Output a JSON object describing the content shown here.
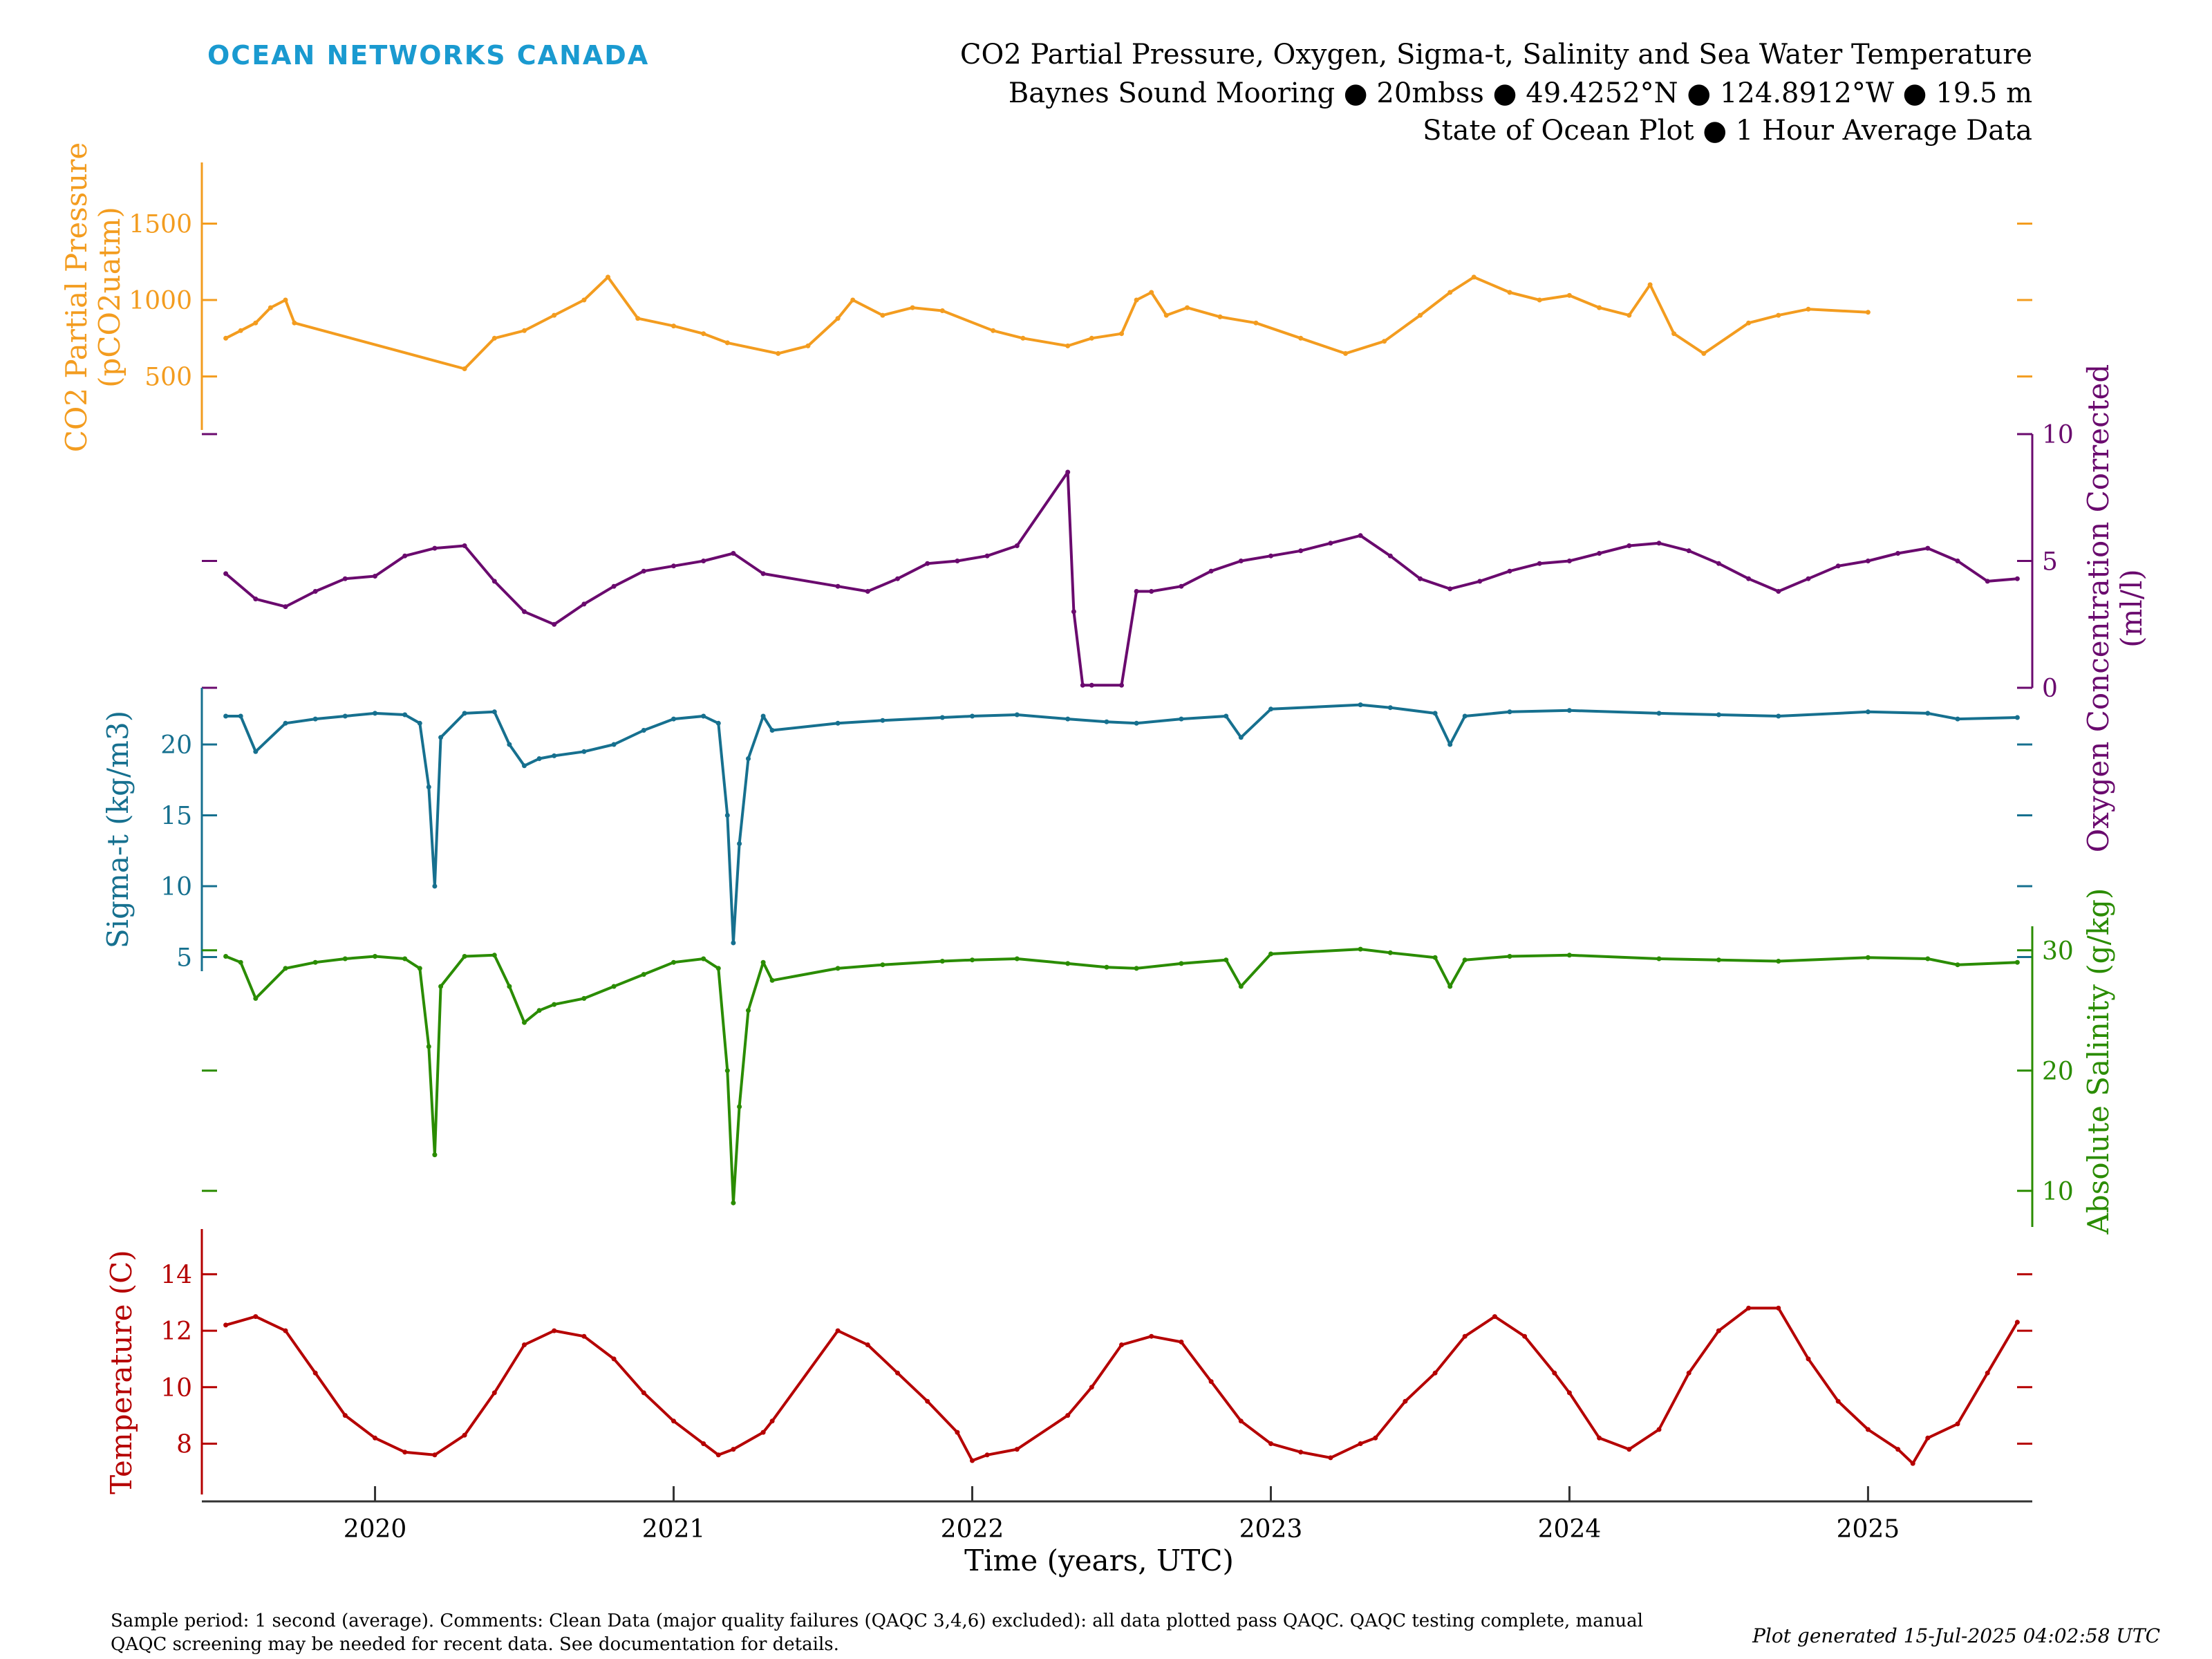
{
  "header": {
    "logo_text": "OCEAN NETWORKS CANADA",
    "title_line1": "CO2 Partial Pressure, Oxygen, Sigma-t, Salinity and Sea Water Temperature",
    "title_line2": "Baynes Sound Mooring ● 20mbss ● 49.4252°N ● 124.8912°W ● 19.5 m",
    "title_line3": "State of Ocean Plot ● 1 Hour Average Data"
  },
  "footer": {
    "comment_line1": "Sample period: 1 second (average). Comments: Clean Data (major quality failures (QAQC 3,4,6) excluded): all data plotted pass QAQC. QAQC testing complete, manual",
    "comment_line2": "QAQC screening may be needed for recent data. See documentation for details.",
    "generated": "Plot generated 15-Jul-2025 04:02:58 UTC"
  },
  "colors": {
    "co2": "#f39c1f",
    "oxygen": "#6a0a6e",
    "sigma": "#16708f",
    "salinity": "#2a8c00",
    "temperature": "#b50000",
    "logo": "#1a9ad0",
    "axis": "#333333"
  },
  "chart_data": {
    "type": "line",
    "xlabel": "Time (years, UTC)",
    "xlim": [
      2019.42,
      2025.55
    ],
    "x_ticks": [
      "2020",
      "2021",
      "2022",
      "2023",
      "2024",
      "2025"
    ],
    "panels": [
      {
        "id": "co2",
        "ylabel_line1": "CO2 Partial Pressure",
        "ylabel_line2": "(pCO2uatm)",
        "side": "left",
        "ylim": [
          150,
          1900
        ],
        "ticks": [
          500,
          1000,
          1500
        ],
        "x": [
          2019.5,
          2019.55,
          2019.6,
          2019.65,
          2019.7,
          2019.73,
          2020.3,
          2020.4,
          2020.5,
          2020.6,
          2020.7,
          2020.78,
          2020.88,
          2021.0,
          2021.1,
          2021.18,
          2021.35,
          2021.45,
          2021.55,
          2021.6,
          2021.7,
          2021.8,
          2021.9,
          2022.07,
          2022.17,
          2022.32,
          2022.4,
          2022.5,
          2022.55,
          2022.6,
          2022.65,
          2022.72,
          2022.83,
          2022.95,
          2023.1,
          2023.25,
          2023.38,
          2023.5,
          2023.6,
          2023.68,
          2023.8,
          2023.9,
          2024.0,
          2024.1,
          2024.2,
          2024.27,
          2024.35,
          2024.45,
          2024.6,
          2024.7,
          2024.8,
          2025.0
        ],
        "y": [
          750,
          800,
          850,
          950,
          1000,
          850,
          550,
          750,
          800,
          900,
          1000,
          1150,
          880,
          830,
          780,
          720,
          650,
          700,
          880,
          1000,
          900,
          950,
          930,
          800,
          750,
          700,
          750,
          780,
          1000,
          1050,
          900,
          950,
          890,
          850,
          750,
          650,
          730,
          900,
          1050,
          1150,
          1050,
          1000,
          1030,
          950,
          900,
          1100,
          780,
          650,
          850,
          900,
          940,
          920
        ]
      },
      {
        "id": "oxygen",
        "ylabel_line1": "Oxygen Concentration Corrected",
        "ylabel_line2": "(ml/l)",
        "side": "right",
        "ylim": [
          0,
          10
        ],
        "ticks": [
          0,
          5,
          10
        ],
        "x": [
          2019.5,
          2019.6,
          2019.7,
          2019.8,
          2019.9,
          2020.0,
          2020.1,
          2020.2,
          2020.3,
          2020.4,
          2020.5,
          2020.6,
          2020.7,
          2020.8,
          2020.9,
          2021.0,
          2021.1,
          2021.2,
          2021.3,
          2021.55,
          2021.65,
          2021.75,
          2021.85,
          2021.95,
          2022.05,
          2022.15,
          2022.32,
          2022.34,
          2022.37,
          2022.4,
          2022.5,
          2022.55,
          2022.6,
          2022.7,
          2022.8,
          2022.9,
          2023.0,
          2023.1,
          2023.2,
          2023.3,
          2023.4,
          2023.5,
          2023.6,
          2023.7,
          2023.8,
          2023.9,
          2024.0,
          2024.1,
          2024.2,
          2024.3,
          2024.4,
          2024.5,
          2024.6,
          2024.7,
          2024.8,
          2024.9,
          2025.0,
          2025.1,
          2025.2,
          2025.3,
          2025.4,
          2025.5
        ],
        "y": [
          4.5,
          3.5,
          3.2,
          3.8,
          4.3,
          4.4,
          5.2,
          5.5,
          5.6,
          4.2,
          3.0,
          2.5,
          3.3,
          4.0,
          4.6,
          4.8,
          5.0,
          5.3,
          4.5,
          4.0,
          3.8,
          4.3,
          4.9,
          5.0,
          5.2,
          5.6,
          8.5,
          3.0,
          0.1,
          0.1,
          0.1,
          3.8,
          3.8,
          4.0,
          4.6,
          5.0,
          5.2,
          5.4,
          5.7,
          6.0,
          5.2,
          4.3,
          3.9,
          4.2,
          4.6,
          4.9,
          5.0,
          5.3,
          5.6,
          5.7,
          5.4,
          4.9,
          4.3,
          3.8,
          4.3,
          4.8,
          5.0,
          5.3,
          5.5,
          5.0,
          4.2,
          4.3
        ]
      },
      {
        "id": "sigma",
        "ylabel_line1": "Sigma-t (kg/m3)",
        "side": "left",
        "ylim": [
          4,
          24
        ],
        "ticks": [
          5,
          10,
          15,
          20
        ],
        "x": [
          2019.5,
          2019.55,
          2019.6,
          2019.7,
          2019.8,
          2019.9,
          2020.0,
          2020.1,
          2020.15,
          2020.18,
          2020.2,
          2020.22,
          2020.3,
          2020.4,
          2020.45,
          2020.5,
          2020.55,
          2020.6,
          2020.7,
          2020.8,
          2020.9,
          2021.0,
          2021.1,
          2021.15,
          2021.18,
          2021.2,
          2021.22,
          2021.25,
          2021.3,
          2021.33,
          2021.55,
          2021.7,
          2021.9,
          2022.0,
          2022.15,
          2022.32,
          2022.45,
          2022.55,
          2022.7,
          2022.85,
          2022.9,
          2023.0,
          2023.3,
          2023.4,
          2023.55,
          2023.6,
          2023.65,
          2023.8,
          2024.0,
          2024.3,
          2024.5,
          2024.7,
          2025.0,
          2025.2,
          2025.3,
          2025.5
        ],
        "y": [
          22.0,
          22.0,
          19.5,
          21.5,
          21.8,
          22.0,
          22.2,
          22.1,
          21.5,
          17.0,
          10.0,
          20.5,
          22.2,
          22.3,
          20.0,
          18.5,
          19.0,
          19.2,
          19.5,
          20.0,
          21.0,
          21.8,
          22.0,
          21.5,
          15.0,
          6.0,
          13.0,
          19.0,
          22.0,
          21.0,
          21.5,
          21.7,
          21.9,
          22.0,
          22.1,
          21.8,
          21.6,
          21.5,
          21.8,
          22.0,
          20.5,
          22.5,
          22.8,
          22.6,
          22.2,
          20.0,
          22.0,
          22.3,
          22.4,
          22.2,
          22.1,
          22.0,
          22.3,
          22.2,
          21.8,
          21.9
        ]
      },
      {
        "id": "salinity",
        "ylabel_line1": "Absolute Salinity (g/kg)",
        "side": "right",
        "ylim": [
          7,
          32
        ],
        "ticks": [
          10,
          20,
          30
        ],
        "x": [
          2019.5,
          2019.55,
          2019.6,
          2019.7,
          2019.8,
          2019.9,
          2020.0,
          2020.1,
          2020.15,
          2020.18,
          2020.2,
          2020.22,
          2020.3,
          2020.4,
          2020.45,
          2020.5,
          2020.55,
          2020.6,
          2020.7,
          2020.8,
          2020.9,
          2021.0,
          2021.1,
          2021.15,
          2021.18,
          2021.2,
          2021.22,
          2021.25,
          2021.3,
          2021.33,
          2021.55,
          2021.7,
          2021.9,
          2022.0,
          2022.15,
          2022.32,
          2022.45,
          2022.55,
          2022.7,
          2022.85,
          2022.9,
          2023.0,
          2023.3,
          2023.4,
          2023.55,
          2023.6,
          2023.65,
          2023.8,
          2024.0,
          2024.3,
          2024.5,
          2024.7,
          2025.0,
          2025.2,
          2025.3,
          2025.5
        ],
        "y": [
          29.5,
          29.0,
          26.0,
          28.5,
          29.0,
          29.3,
          29.5,
          29.3,
          28.5,
          22.0,
          13.0,
          27.0,
          29.5,
          29.6,
          27.0,
          24.0,
          25.0,
          25.5,
          26.0,
          27.0,
          28.0,
          29.0,
          29.3,
          28.5,
          20.0,
          9.0,
          17.0,
          25.0,
          29.0,
          27.5,
          28.5,
          28.8,
          29.1,
          29.2,
          29.3,
          28.9,
          28.6,
          28.5,
          28.9,
          29.2,
          27.0,
          29.7,
          30.1,
          29.8,
          29.4,
          27.0,
          29.2,
          29.5,
          29.6,
          29.3,
          29.2,
          29.1,
          29.4,
          29.3,
          28.8,
          29.0
        ]
      },
      {
        "id": "temperature",
        "ylabel_line1": "Temperature (C)",
        "side": "left",
        "ylim": [
          6.2,
          15.6
        ],
        "ticks": [
          8,
          10,
          12,
          14
        ],
        "x": [
          2019.5,
          2019.6,
          2019.7,
          2019.8,
          2019.9,
          2020.0,
          2020.1,
          2020.2,
          2020.3,
          2020.4,
          2020.5,
          2020.6,
          2020.7,
          2020.8,
          2020.9,
          2021.0,
          2021.1,
          2021.15,
          2021.2,
          2021.3,
          2021.33,
          2021.55,
          2021.65,
          2021.75,
          2021.85,
          2021.95,
          2022.0,
          2022.05,
          2022.15,
          2022.32,
          2022.4,
          2022.5,
          2022.6,
          2022.7,
          2022.8,
          2022.9,
          2023.0,
          2023.1,
          2023.2,
          2023.3,
          2023.35,
          2023.45,
          2023.55,
          2023.65,
          2023.75,
          2023.85,
          2023.95,
          2024.0,
          2024.1,
          2024.2,
          2024.3,
          2024.4,
          2024.5,
          2024.6,
          2024.7,
          2024.8,
          2024.9,
          2025.0,
          2025.1,
          2025.15,
          2025.2,
          2025.3,
          2025.4,
          2025.5
        ],
        "y": [
          12.2,
          12.5,
          12.0,
          10.5,
          9.0,
          8.2,
          7.7,
          7.6,
          8.3,
          9.8,
          11.5,
          12.0,
          11.8,
          11.0,
          9.8,
          8.8,
          8.0,
          7.6,
          7.8,
          8.4,
          8.8,
          12.0,
          11.5,
          10.5,
          9.5,
          8.4,
          7.4,
          7.6,
          7.8,
          9.0,
          10.0,
          11.5,
          11.8,
          11.6,
          10.2,
          8.8,
          8.0,
          7.7,
          7.5,
          8.0,
          8.2,
          9.5,
          10.5,
          11.8,
          12.5,
          11.8,
          10.5,
          9.8,
          8.2,
          7.8,
          8.5,
          10.5,
          12.0,
          12.8,
          12.8,
          11.0,
          9.5,
          8.5,
          7.8,
          7.3,
          8.2,
          8.7,
          10.5,
          12.3
        ]
      }
    ]
  }
}
